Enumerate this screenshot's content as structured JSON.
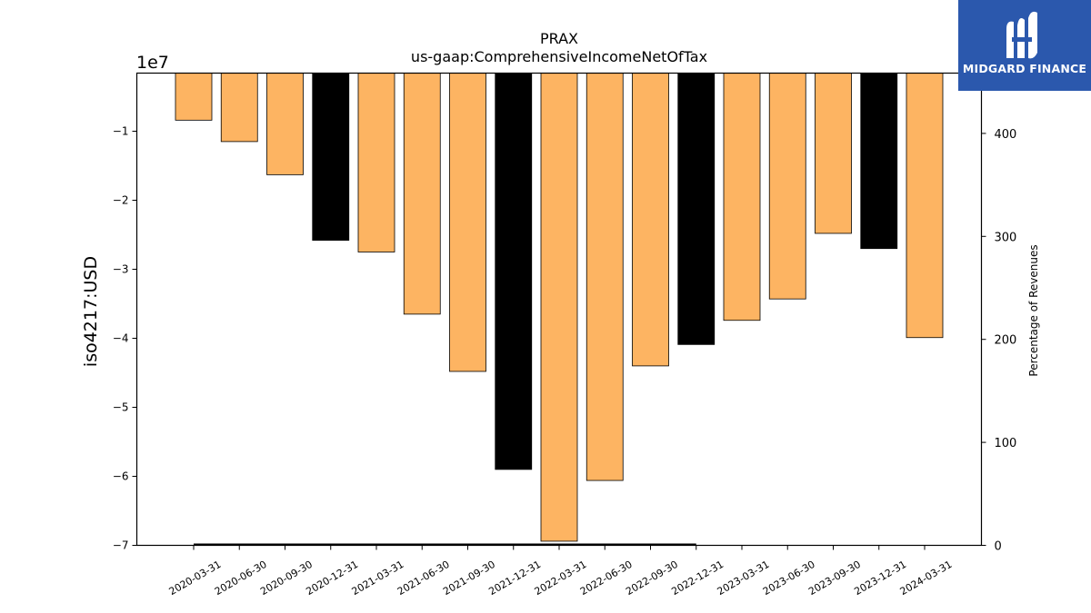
{
  "brand": {
    "name": "MIDGARD FINANCE",
    "logo_icon": "midgard-logo-icon",
    "color": "#2b58ad"
  },
  "chart_data": {
    "type": "bar",
    "title": "PRAX",
    "subtitle": "us-gaap:ComprehensiveIncomeNetOfTax",
    "ylabel": "iso4217:USD",
    "y_offset_label": "1e7",
    "y2label": "Percentage of Revenues",
    "ylim": [
      -7,
      -0.17
    ],
    "y_scale_multiplier": 10000000,
    "y2lim": [
      0,
      460
    ],
    "yticks": [
      -1,
      -2,
      -3,
      -4,
      -5,
      -6,
      -7
    ],
    "y2ticks": [
      0,
      100,
      200,
      300,
      400
    ],
    "grid": false,
    "legend": "none",
    "categories": [
      "2020-03-31",
      "2020-06-30",
      "2020-09-30",
      "2020-12-31",
      "2021-03-31",
      "2021-06-30",
      "2021-09-30",
      "2021-12-31",
      "2022-03-31",
      "2022-06-30",
      "2022-09-30",
      "2022-12-31",
      "2023-03-31",
      "2023-06-30",
      "2023-09-30",
      "2023-12-31",
      "2024-03-31"
    ],
    "values": [
      -0.84,
      -1.15,
      -1.63,
      -2.58,
      -2.75,
      -3.65,
      -4.48,
      -5.9,
      -6.94,
      -6.06,
      -4.4,
      -4.09,
      -3.74,
      -3.43,
      -2.48,
      -2.7,
      -3.99
    ],
    "fourth_quarter": [
      false,
      false,
      false,
      true,
      false,
      false,
      false,
      true,
      false,
      false,
      false,
      true,
      false,
      false,
      false,
      true,
      false
    ],
    "percentage_of_revenues": {
      "x_start": "2020-03-31",
      "x_end": "2022-12-31",
      "value": 0
    },
    "colors": {
      "quarter": "#fdb462",
      "fourth_quarter": "#000000",
      "edge": "#000000"
    }
  }
}
